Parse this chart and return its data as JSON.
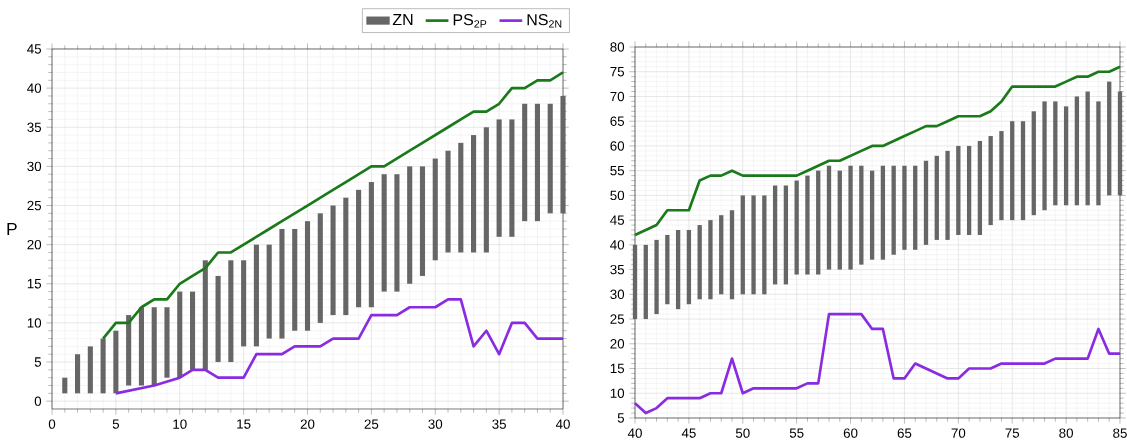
{
  "chart_data": [
    {
      "type": "line",
      "ylabel": "P",
      "xlim": [
        0,
        40
      ],
      "ylim": [
        -1,
        45
      ],
      "xticks": [
        0,
        5,
        10,
        15,
        20,
        25,
        30,
        35,
        40
      ],
      "yticks": [
        0,
        5,
        10,
        15,
        20,
        25,
        30,
        35,
        40,
        45
      ],
      "grid": true,
      "legend": "top",
      "marker": "none",
      "series": [
        {
          "name": "ZN",
          "type": "bar",
          "color": "#666666",
          "x": [
            1,
            2,
            3,
            4,
            5,
            6,
            7,
            8,
            9,
            10,
            11,
            12,
            13,
            14,
            15,
            16,
            17,
            18,
            19,
            20,
            21,
            22,
            23,
            24,
            25,
            26,
            27,
            28,
            29,
            30,
            31,
            32,
            33,
            34,
            35,
            36,
            37,
            38,
            39,
            40
          ],
          "base": [
            1,
            1,
            1,
            1,
            1,
            2,
            2,
            2,
            3,
            3,
            4,
            4,
            5,
            5,
            7,
            7,
            8,
            8,
            9,
            9,
            10,
            11,
            11,
            12,
            12,
            14,
            14,
            15,
            16,
            18,
            19,
            19,
            19,
            19,
            21,
            21,
            23,
            23,
            24,
            24
          ],
          "values": [
            2,
            5,
            6,
            7,
            8,
            9,
            10,
            10,
            9,
            11,
            10,
            14,
            11,
            13,
            11,
            13,
            12,
            14,
            13,
            14,
            14,
            14,
            15,
            15,
            16,
            15,
            15,
            15,
            14,
            13,
            13,
            14,
            15,
            16,
            15,
            15,
            15,
            15,
            14,
            15
          ]
        },
        {
          "name": "PS$_{2P}$",
          "color": "#1a7a1a",
          "x": [
            4,
            5,
            6,
            7,
            8,
            9,
            10,
            11,
            12,
            13,
            14,
            15,
            16,
            17,
            18,
            19,
            20,
            21,
            22,
            23,
            24,
            25,
            26,
            27,
            28,
            29,
            30,
            31,
            32,
            33,
            34,
            35,
            36,
            37,
            38,
            39,
            40
          ],
          "values": [
            8,
            10,
            10,
            12,
            13,
            13,
            15,
            16,
            17,
            19,
            19,
            20,
            21,
            22,
            23,
            24,
            25,
            26,
            27,
            28,
            29,
            30,
            30,
            31,
            32,
            33,
            34,
            35,
            36,
            37,
            37,
            38,
            40,
            40,
            41,
            41,
            42
          ]
        },
        {
          "name": "NS$_{2N}$",
          "color": "#8a2be2",
          "x": [
            5,
            8,
            10,
            11,
            12,
            13,
            15,
            16,
            18,
            19,
            21,
            22,
            24,
            25,
            27,
            28,
            30,
            31,
            32,
            33,
            34,
            35,
            36,
            37,
            38,
            40
          ],
          "values": [
            1,
            2,
            3,
            4,
            4,
            3,
            3,
            6,
            6,
            7,
            7,
            8,
            8,
            11,
            11,
            12,
            12,
            13,
            13,
            7,
            9,
            6,
            10,
            10,
            8,
            8
          ]
        }
      ]
    },
    {
      "type": "line",
      "xlim": [
        40,
        85
      ],
      "ylim": [
        5,
        80
      ],
      "xticks": [
        40,
        45,
        50,
        55,
        60,
        65,
        70,
        75,
        80,
        85
      ],
      "yticks": [
        5,
        10,
        15,
        20,
        25,
        30,
        35,
        40,
        45,
        50,
        55,
        60,
        65,
        70,
        75,
        80
      ],
      "grid": true,
      "marker": "none",
      "series": [
        {
          "type": "bar",
          "color": "#666666",
          "x": [
            40,
            41,
            42,
            43,
            44,
            45,
            46,
            47,
            48,
            49,
            50,
            51,
            52,
            53,
            54,
            55,
            56,
            57,
            58,
            59,
            60,
            61,
            62,
            63,
            64,
            65,
            66,
            67,
            68,
            69,
            70,
            71,
            72,
            73,
            74,
            75,
            76,
            77,
            78,
            79,
            80,
            81,
            82,
            83,
            84,
            85
          ],
          "base": [
            25,
            25,
            26,
            28,
            27,
            28,
            29,
            29,
            30,
            29,
            30,
            30,
            30,
            32,
            32,
            34,
            34,
            34,
            35,
            35,
            35,
            36,
            37,
            37,
            38,
            39,
            39,
            40,
            41,
            41,
            42,
            42,
            42,
            44,
            45,
            45,
            45,
            46,
            47,
            48,
            48,
            48,
            48,
            48,
            50,
            50
          ],
          "values": [
            15,
            15,
            15,
            14,
            16,
            15,
            15,
            16,
            16,
            18,
            20,
            20,
            20,
            20,
            20,
            19,
            20,
            21,
            21,
            20,
            21,
            20,
            18,
            19,
            18,
            17,
            17,
            17,
            17,
            18,
            18,
            18,
            19,
            18,
            18,
            20,
            20,
            21,
            22,
            21,
            20,
            22,
            23,
            21,
            23,
            21
          ]
        },
        {
          "color": "#1a7a1a",
          "x": [
            40,
            41,
            42,
            43,
            44,
            45,
            46,
            47,
            48,
            49,
            50,
            51,
            52,
            53,
            54,
            55,
            56,
            57,
            58,
            59,
            60,
            61,
            62,
            63,
            64,
            65,
            66,
            67,
            68,
            69,
            70,
            71,
            72,
            73,
            74,
            75,
            76,
            77,
            78,
            79,
            80,
            81,
            82,
            83,
            84,
            85
          ],
          "values": [
            42,
            43,
            44,
            47,
            47,
            47,
            53,
            54,
            54,
            55,
            54,
            54,
            54,
            54,
            54,
            54,
            55,
            56,
            57,
            57,
            58,
            59,
            60,
            60,
            61,
            62,
            63,
            64,
            64,
            65,
            66,
            66,
            66,
            67,
            69,
            72,
            72,
            72,
            72,
            72,
            73,
            74,
            74,
            75,
            75,
            76
          ]
        },
        {
          "color": "#8a2be2",
          "x": [
            40,
            41,
            42,
            43,
            46,
            47,
            48,
            49,
            50,
            51,
            55,
            56,
            57,
            58,
            61,
            62,
            63,
            64,
            65,
            66,
            69,
            70,
            71,
            73,
            74,
            78,
            79,
            82,
            83,
            84,
            85
          ],
          "values": [
            8,
            6,
            7,
            9,
            9,
            10,
            10,
            17,
            10,
            11,
            11,
            12,
            12,
            26,
            26,
            23,
            23,
            13,
            13,
            16,
            13,
            13,
            15,
            15,
            16,
            16,
            17,
            17,
            23,
            18,
            18
          ]
        }
      ]
    }
  ]
}
